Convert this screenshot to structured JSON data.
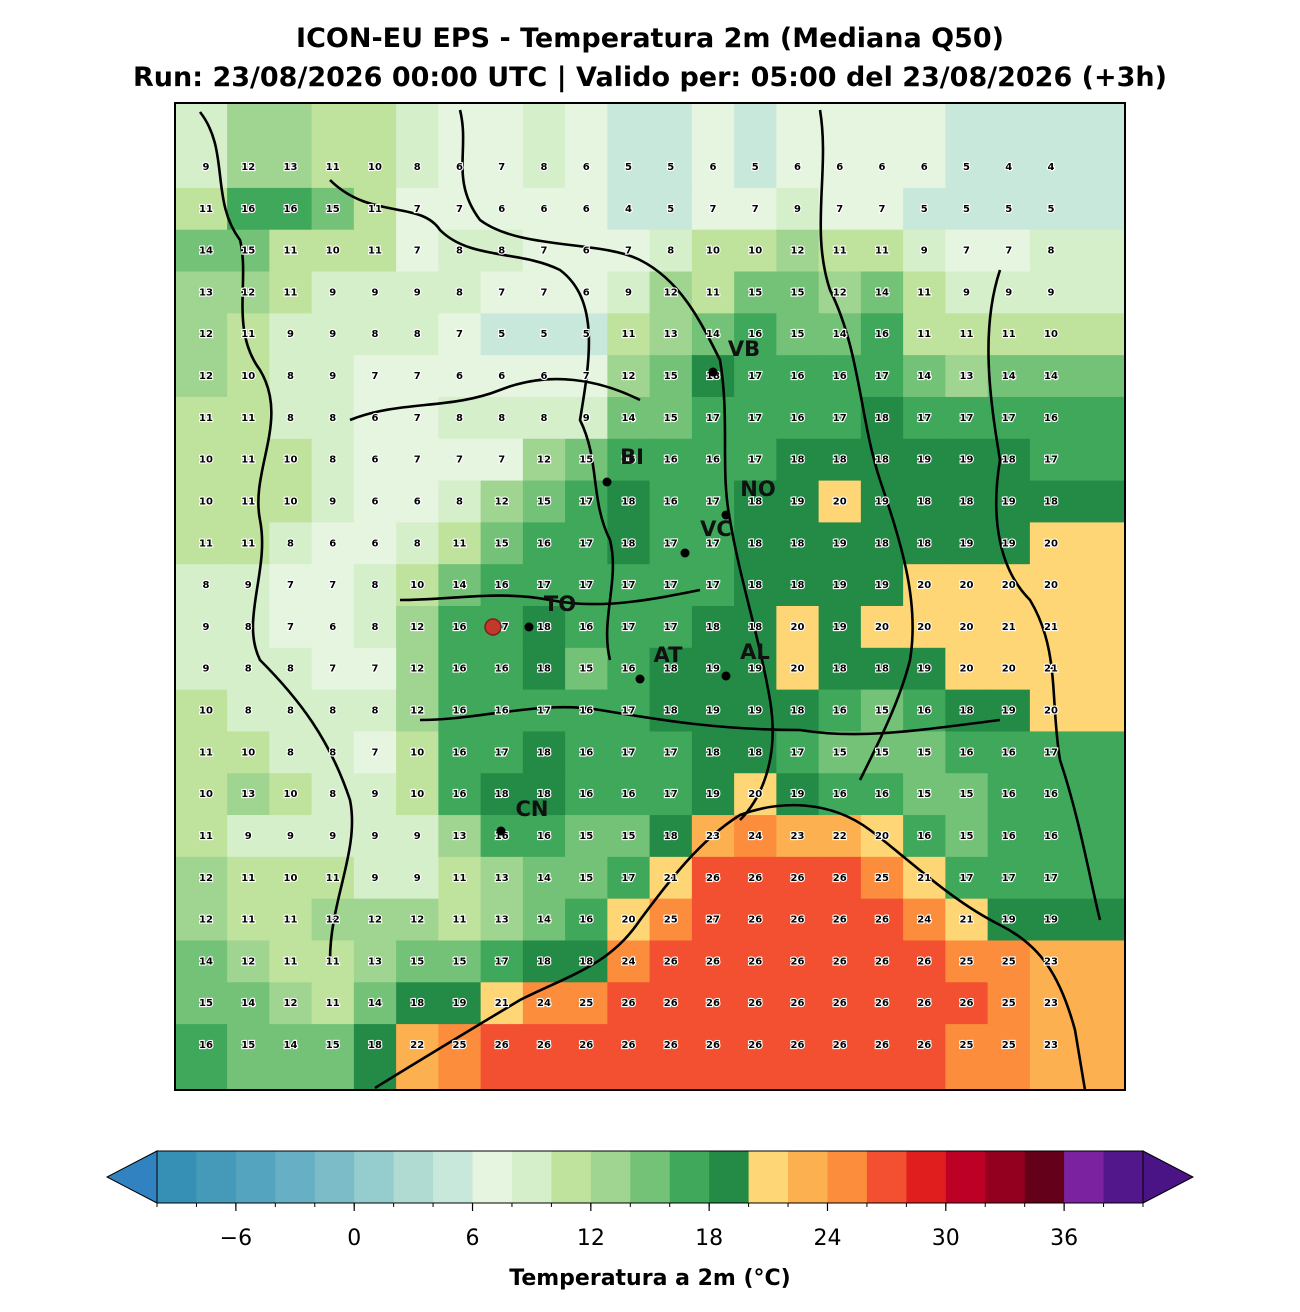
{
  "map": {
    "title": "ICON-EU EPS - Temperatura 2m (Mediana Q50)",
    "subtitle": "Run: 23/08/2026 00:00 UTC | Valido per: 05:00 del 23/08/2026 (+3h)",
    "grid": [
      [
        9,
        12,
        13,
        11,
        10,
        8,
        6,
        7,
        8,
        6,
        5,
        5,
        6,
        5,
        6,
        6,
        6,
        6,
        5,
        4,
        4
      ],
      [
        11,
        16,
        16,
        15,
        11,
        7,
        7,
        6,
        6,
        6,
        4,
        5,
        7,
        7,
        9,
        7,
        7,
        5,
        5,
        5,
        5
      ],
      [
        14,
        15,
        11,
        10,
        11,
        7,
        8,
        8,
        7,
        6,
        7,
        8,
        10,
        10,
        12,
        11,
        11,
        9,
        7,
        7,
        8
      ],
      [
        13,
        12,
        11,
        9,
        9,
        9,
        8,
        7,
        7,
        6,
        9,
        12,
        11,
        15,
        15,
        12,
        14,
        11,
        9,
        9,
        9
      ],
      [
        12,
        11,
        9,
        9,
        8,
        8,
        7,
        5,
        5,
        5,
        11,
        13,
        14,
        16,
        15,
        14,
        16,
        11,
        11,
        11,
        10
      ],
      [
        12,
        10,
        8,
        9,
        7,
        7,
        6,
        6,
        6,
        7,
        12,
        15,
        18,
        17,
        16,
        16,
        17,
        14,
        13,
        14,
        14
      ],
      [
        11,
        11,
        8,
        8,
        6,
        7,
        8,
        8,
        8,
        9,
        14,
        15,
        17,
        17,
        16,
        17,
        18,
        17,
        17,
        17,
        16
      ],
      [
        10,
        11,
        10,
        8,
        6,
        7,
        7,
        7,
        12,
        15,
        16,
        16,
        16,
        17,
        18,
        18,
        18,
        19,
        19,
        18,
        17
      ],
      [
        10,
        11,
        10,
        9,
        6,
        6,
        8,
        12,
        15,
        17,
        18,
        16,
        17,
        18,
        19,
        20,
        19,
        18,
        18,
        19,
        18
      ],
      [
        11,
        11,
        8,
        6,
        6,
        8,
        11,
        15,
        16,
        17,
        18,
        17,
        17,
        18,
        18,
        19,
        18,
        18,
        19,
        19,
        20
      ],
      [
        8,
        9,
        7,
        7,
        8,
        10,
        14,
        16,
        17,
        17,
        17,
        17,
        17,
        18,
        18,
        19,
        19,
        20,
        20,
        20,
        20
      ],
      [
        9,
        8,
        7,
        6,
        8,
        12,
        16,
        17,
        18,
        16,
        17,
        17,
        18,
        18,
        20,
        19,
        20,
        20,
        20,
        21,
        21
      ],
      [
        9,
        8,
        8,
        7,
        7,
        12,
        16,
        16,
        18,
        15,
        16,
        18,
        19,
        19,
        20,
        18,
        18,
        19,
        20,
        20,
        21
      ],
      [
        10,
        8,
        8,
        8,
        8,
        12,
        16,
        16,
        17,
        16,
        17,
        18,
        19,
        19,
        18,
        16,
        15,
        16,
        18,
        19,
        20
      ],
      [
        11,
        10,
        8,
        8,
        7,
        10,
        16,
        17,
        18,
        16,
        17,
        17,
        18,
        18,
        17,
        15,
        15,
        15,
        16,
        16,
        17
      ],
      [
        10,
        13,
        10,
        8,
        9,
        10,
        16,
        18,
        18,
        16,
        16,
        17,
        19,
        20,
        19,
        16,
        16,
        15,
        15,
        16,
        16
      ],
      [
        11,
        9,
        9,
        9,
        9,
        9,
        13,
        16,
        16,
        15,
        15,
        18,
        23,
        24,
        23,
        22,
        20,
        16,
        15,
        16,
        16
      ],
      [
        12,
        11,
        10,
        11,
        9,
        9,
        11,
        13,
        14,
        15,
        17,
        21,
        26,
        26,
        26,
        26,
        25,
        21,
        17,
        17,
        17
      ],
      [
        12,
        11,
        11,
        12,
        12,
        12,
        11,
        13,
        14,
        16,
        20,
        25,
        27,
        26,
        26,
        26,
        26,
        24,
        21,
        19,
        19
      ],
      [
        14,
        12,
        11,
        11,
        13,
        15,
        15,
        17,
        18,
        18,
        24,
        26,
        26,
        26,
        26,
        26,
        26,
        26,
        25,
        25,
        23
      ],
      [
        15,
        14,
        12,
        11,
        14,
        18,
        19,
        21,
        24,
        25,
        26,
        26,
        26,
        26,
        26,
        26,
        26,
        26,
        26,
        25,
        23
      ],
      [
        16,
        15,
        14,
        15,
        18,
        22,
        25,
        26,
        26,
        26,
        26,
        26,
        26,
        26,
        26,
        26,
        26,
        26,
        25,
        25,
        23
      ]
    ],
    "cities": [
      "VB",
      "BI",
      "NO",
      "VC",
      "TO",
      "AT",
      "AL",
      "CN"
    ],
    "colorbar": {
      "label": "Temperatura a 2m (°C)",
      "levels": [
        -10,
        -8,
        -6,
        -4,
        -2,
        0,
        2,
        4,
        6,
        8,
        10,
        12,
        14,
        16,
        18,
        20,
        22,
        24,
        26,
        28,
        30,
        32,
        34,
        36,
        38,
        40
      ],
      "colors": [
        "#3690b5",
        "#4599b9",
        "#55a4bf",
        "#67afc4",
        "#7cbcc8",
        "#95cccd",
        "#b0dbd3",
        "#c9e8dc",
        "#e6f5e0",
        "#d6efcb",
        "#bfe29c",
        "#a0d491",
        "#74c277",
        "#3fa85b",
        "#238b45",
        "#fed676",
        "#fdb04f",
        "#fb8d3d",
        "#f25030",
        "#e01e1e",
        "#bd0026",
        "#93001f",
        "#65001a",
        "#7b22a0",
        "#52178a"
      ],
      "under_color": "#3083c0",
      "over_color": "#4a1486",
      "ticks": [
        {
          "value": -6,
          "label": "−6"
        },
        0,
        6,
        12,
        18,
        24,
        30,
        36
      ]
    }
  }
}
